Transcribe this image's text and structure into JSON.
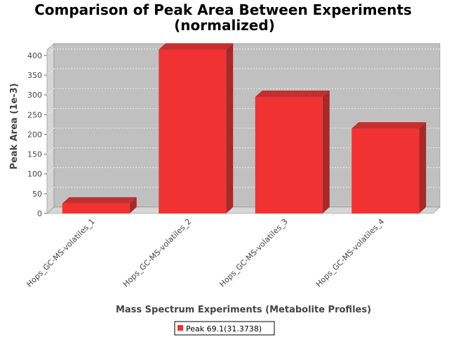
{
  "chart_data": {
    "type": "bar",
    "title_line1": "Comparison of Peak Area Between Experiments",
    "title_line2": "(normalized)",
    "xlabel": "Mass Spectrum Experiments (Metabolite Profiles)",
    "ylabel": "Peak Area (1e-3)",
    "categories": [
      "Hops_GC-MS-volatiles_1",
      "Hops_GC-MS-volatiles_2",
      "Hops_GC-MS-volatiles_3",
      "Hops_GC-MS-volatiles_4"
    ],
    "series": [
      {
        "name": "Peak 69.1(31.3738)",
        "values": [
          25,
          415,
          295,
          215
        ],
        "color": "#f03232"
      }
    ],
    "ylim": [
      0,
      430
    ],
    "yticks": [
      0,
      50,
      100,
      150,
      200,
      250,
      300,
      350,
      400
    ],
    "grid": true,
    "legend_position": "bottom",
    "style": "3d"
  }
}
